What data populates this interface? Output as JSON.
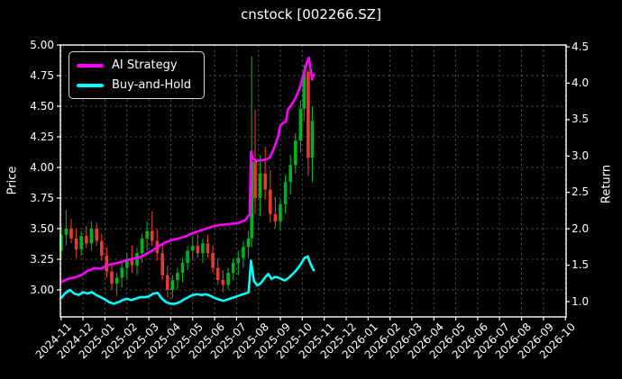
{
  "title": "cnstock [002266.SZ]",
  "colors": {
    "background": "#000000",
    "text": "#ffffff",
    "grid": "#6e6e6e",
    "spine": "#ffffff",
    "candle_up": "#00b31e",
    "candle_down": "#e63a30",
    "ai_strategy": "#ff00ff",
    "buy_and_hold": "#00ffff"
  },
  "chart_data": {
    "type": "candlestick",
    "title": "cnstock [002266.SZ]",
    "grid": "dashed, both horizontal (price ticks) and vertical (month ticks)",
    "legend_position": "upper left",
    "x_axis": {
      "unit": "month",
      "tick_labels": [
        "2024-11",
        "2024-12",
        "2025-01",
        "2025-02",
        "2025-03",
        "2025-04",
        "2025-05",
        "2025-06",
        "2025-07",
        "2025-08",
        "2025-09",
        "2025-10",
        "2025-11",
        "2025-12",
        "2026-01",
        "2026-02",
        "2026-03",
        "2026-04",
        "2026-05",
        "2026-06",
        "2026-07",
        "2026-08",
        "2026-09",
        "2026-10"
      ],
      "data_end_month_offset": 11.52
    },
    "left_axis": {
      "label": "Price",
      "tick_labels": [
        "5.00",
        "4.75",
        "4.50",
        "4.25",
        "4.00",
        "3.75",
        "3.50",
        "3.25",
        "3.00"
      ],
      "tick_values": [
        5.0,
        4.75,
        4.5,
        4.25,
        4.0,
        3.75,
        3.5,
        3.25,
        3.0
      ],
      "range": [
        2.78,
        5.0
      ]
    },
    "right_axis": {
      "label": "Return",
      "tick_labels": [
        "4.5",
        "4.0",
        "3.5",
        "3.0",
        "2.5",
        "2.0",
        "1.5",
        "1.0"
      ],
      "tick_values": [
        4.5,
        4.0,
        3.5,
        3.0,
        2.5,
        2.0,
        1.5,
        1.0
      ],
      "range": [
        0.79,
        4.52
      ]
    },
    "candles": {
      "columns": [
        "month_offset",
        "open",
        "high",
        "low",
        "close"
      ],
      "rows": [
        [
          0.0,
          3.32,
          3.52,
          3.25,
          3.45
        ],
        [
          0.23,
          3.45,
          3.65,
          3.36,
          3.5
        ],
        [
          0.46,
          3.5,
          3.58,
          3.38,
          3.42
        ],
        [
          0.69,
          3.42,
          3.5,
          3.26,
          3.33
        ],
        [
          0.92,
          3.33,
          3.48,
          3.28,
          3.44
        ],
        [
          1.15,
          3.44,
          3.52,
          3.34,
          3.38
        ],
        [
          1.38,
          3.38,
          3.56,
          3.32,
          3.5
        ],
        [
          1.62,
          3.5,
          3.55,
          3.36,
          3.4
        ],
        [
          1.85,
          3.4,
          3.46,
          3.24,
          3.28
        ],
        [
          2.08,
          3.28,
          3.35,
          3.1,
          3.15
        ],
        [
          2.31,
          3.15,
          3.22,
          3.0,
          3.05
        ],
        [
          2.54,
          3.05,
          3.14,
          2.95,
          3.1
        ],
        [
          2.77,
          3.1,
          3.22,
          3.02,
          3.18
        ],
        [
          3.0,
          3.18,
          3.3,
          3.08,
          3.25
        ],
        [
          3.23,
          3.25,
          3.36,
          3.14,
          3.2
        ],
        [
          3.46,
          3.2,
          3.34,
          3.12,
          3.3
        ],
        [
          3.69,
          3.3,
          3.46,
          3.22,
          3.42
        ],
        [
          3.92,
          3.42,
          3.56,
          3.32,
          3.48
        ],
        [
          4.15,
          3.48,
          3.64,
          3.36,
          3.4
        ],
        [
          4.38,
          3.4,
          3.5,
          3.24,
          3.3
        ],
        [
          4.62,
          3.3,
          3.38,
          3.08,
          3.12
        ],
        [
          4.85,
          3.12,
          3.2,
          2.94,
          3.0
        ],
        [
          5.08,
          3.0,
          3.12,
          2.93,
          3.08
        ],
        [
          5.31,
          3.08,
          3.18,
          3.0,
          3.14
        ],
        [
          5.54,
          3.14,
          3.26,
          3.06,
          3.22
        ],
        [
          5.77,
          3.22,
          3.36,
          3.16,
          3.32
        ],
        [
          6.0,
          3.32,
          3.44,
          3.24,
          3.36
        ],
        [
          6.23,
          3.36,
          3.46,
          3.26,
          3.3
        ],
        [
          6.46,
          3.3,
          3.42,
          3.22,
          3.38
        ],
        [
          6.69,
          3.38,
          3.45,
          3.26,
          3.3
        ],
        [
          6.92,
          3.3,
          3.36,
          3.14,
          3.18
        ],
        [
          7.15,
          3.18,
          3.26,
          3.04,
          3.08
        ],
        [
          7.38,
          3.08,
          3.16,
          2.98,
          3.04
        ],
        [
          7.62,
          3.04,
          3.18,
          3.0,
          3.14
        ],
        [
          7.85,
          3.14,
          3.26,
          3.08,
          3.22
        ],
        [
          8.08,
          3.22,
          3.32,
          3.12,
          3.26
        ],
        [
          8.31,
          3.26,
          3.4,
          3.18,
          3.35
        ],
        [
          8.54,
          3.35,
          3.48,
          3.26,
          3.42
        ],
        [
          8.69,
          3.42,
          4.91,
          3.35,
          4.05
        ],
        [
          8.85,
          4.05,
          4.47,
          3.62,
          3.75
        ],
        [
          9.08,
          3.75,
          4.1,
          3.6,
          3.95
        ],
        [
          9.31,
          3.95,
          4.17,
          3.74,
          3.82
        ],
        [
          9.54,
          3.82,
          3.98,
          3.55,
          3.62
        ],
        [
          9.77,
          3.62,
          3.76,
          3.5,
          3.56
        ],
        [
          10.0,
          3.56,
          3.74,
          3.48,
          3.7
        ],
        [
          10.23,
          3.7,
          3.94,
          3.62,
          3.88
        ],
        [
          10.46,
          3.88,
          4.1,
          3.78,
          4.02
        ],
        [
          10.69,
          4.02,
          4.28,
          3.95,
          4.22
        ],
        [
          10.92,
          4.22,
          4.55,
          4.12,
          4.48
        ],
        [
          11.08,
          4.48,
          4.84,
          4.38,
          4.78
        ],
        [
          11.27,
          4.78,
          4.8,
          3.93,
          4.08
        ],
        [
          11.46,
          4.08,
          4.5,
          3.88,
          4.38
        ]
      ]
    },
    "series": [
      {
        "name": "AI Strategy",
        "axis": "right",
        "color": "#ff00ff",
        "points": [
          [
            0,
            1.27
          ],
          [
            0.3,
            1.31
          ],
          [
            0.6,
            1.33
          ],
          [
            0.9,
            1.36
          ],
          [
            1.2,
            1.42
          ],
          [
            1.5,
            1.46
          ],
          [
            1.8,
            1.45
          ],
          [
            2.1,
            1.5
          ],
          [
            2.4,
            1.52
          ],
          [
            2.7,
            1.54
          ],
          [
            3.0,
            1.57
          ],
          [
            3.3,
            1.59
          ],
          [
            3.6,
            1.61
          ],
          [
            3.9,
            1.66
          ],
          [
            4.2,
            1.71
          ],
          [
            4.5,
            1.77
          ],
          [
            4.8,
            1.82
          ],
          [
            5.1,
            1.85
          ],
          [
            5.4,
            1.87
          ],
          [
            5.7,
            1.9
          ],
          [
            6.0,
            1.94
          ],
          [
            6.3,
            1.97
          ],
          [
            6.6,
            2.0
          ],
          [
            6.9,
            2.03
          ],
          [
            7.2,
            2.05
          ],
          [
            7.5,
            2.06
          ],
          [
            7.8,
            2.07
          ],
          [
            8.1,
            2.08
          ],
          [
            8.4,
            2.12
          ],
          [
            8.6,
            2.2
          ],
          [
            8.66,
            3.06
          ],
          [
            8.75,
            2.96
          ],
          [
            8.9,
            2.93
          ],
          [
            9.1,
            2.94
          ],
          [
            9.3,
            2.95
          ],
          [
            9.5,
            2.97
          ],
          [
            9.7,
            3.1
          ],
          [
            9.9,
            3.27
          ],
          [
            10.0,
            3.42
          ],
          [
            10.1,
            3.45
          ],
          [
            10.25,
            3.47
          ],
          [
            10.35,
            3.64
          ],
          [
            10.5,
            3.7
          ],
          [
            10.7,
            3.8
          ],
          [
            10.9,
            3.95
          ],
          [
            11.05,
            4.12
          ],
          [
            11.2,
            4.28
          ],
          [
            11.3,
            4.35
          ],
          [
            11.38,
            4.18
          ],
          [
            11.45,
            4.05
          ],
          [
            11.52,
            4.12
          ]
        ]
      },
      {
        "name": "Buy-and-Hold",
        "axis": "right",
        "color": "#00ffff",
        "points": [
          [
            0,
            1.05
          ],
          [
            0.2,
            1.12
          ],
          [
            0.4,
            1.16
          ],
          [
            0.6,
            1.11
          ],
          [
            0.8,
            1.09
          ],
          [
            1.0,
            1.13
          ],
          [
            1.2,
            1.11
          ],
          [
            1.4,
            1.13
          ],
          [
            1.6,
            1.09
          ],
          [
            1.8,
            1.06
          ],
          [
            2.0,
            1.03
          ],
          [
            2.2,
            0.99
          ],
          [
            2.4,
            0.97
          ],
          [
            2.6,
            0.99
          ],
          [
            2.8,
            1.02
          ],
          [
            3.0,
            1.04
          ],
          [
            3.2,
            1.02
          ],
          [
            3.4,
            1.04
          ],
          [
            3.6,
            1.06
          ],
          [
            3.8,
            1.06
          ],
          [
            4.0,
            1.07
          ],
          [
            4.2,
            1.11
          ],
          [
            4.4,
            1.12
          ],
          [
            4.6,
            1.04
          ],
          [
            4.8,
            0.99
          ],
          [
            5.0,
            0.97
          ],
          [
            5.2,
            0.97
          ],
          [
            5.4,
            0.99
          ],
          [
            5.6,
            1.03
          ],
          [
            5.8,
            1.06
          ],
          [
            6.0,
            1.09
          ],
          [
            6.2,
            1.1
          ],
          [
            6.4,
            1.09
          ],
          [
            6.6,
            1.1
          ],
          [
            6.8,
            1.08
          ],
          [
            7.0,
            1.05
          ],
          [
            7.2,
            1.03
          ],
          [
            7.4,
            1.01
          ],
          [
            7.6,
            1.03
          ],
          [
            7.8,
            1.05
          ],
          [
            8.0,
            1.07
          ],
          [
            8.2,
            1.09
          ],
          [
            8.4,
            1.11
          ],
          [
            8.55,
            1.13
          ],
          [
            8.66,
            1.56
          ],
          [
            8.8,
            1.28
          ],
          [
            8.95,
            1.22
          ],
          [
            9.1,
            1.25
          ],
          [
            9.3,
            1.33
          ],
          [
            9.45,
            1.38
          ],
          [
            9.6,
            1.31
          ],
          [
            9.75,
            1.34
          ],
          [
            9.9,
            1.33
          ],
          [
            10.05,
            1.31
          ],
          [
            10.2,
            1.29
          ],
          [
            10.35,
            1.32
          ],
          [
            10.5,
            1.36
          ],
          [
            10.7,
            1.42
          ],
          [
            10.9,
            1.5
          ],
          [
            11.1,
            1.6
          ],
          [
            11.25,
            1.62
          ],
          [
            11.4,
            1.5
          ],
          [
            11.52,
            1.43
          ]
        ]
      }
    ]
  }
}
